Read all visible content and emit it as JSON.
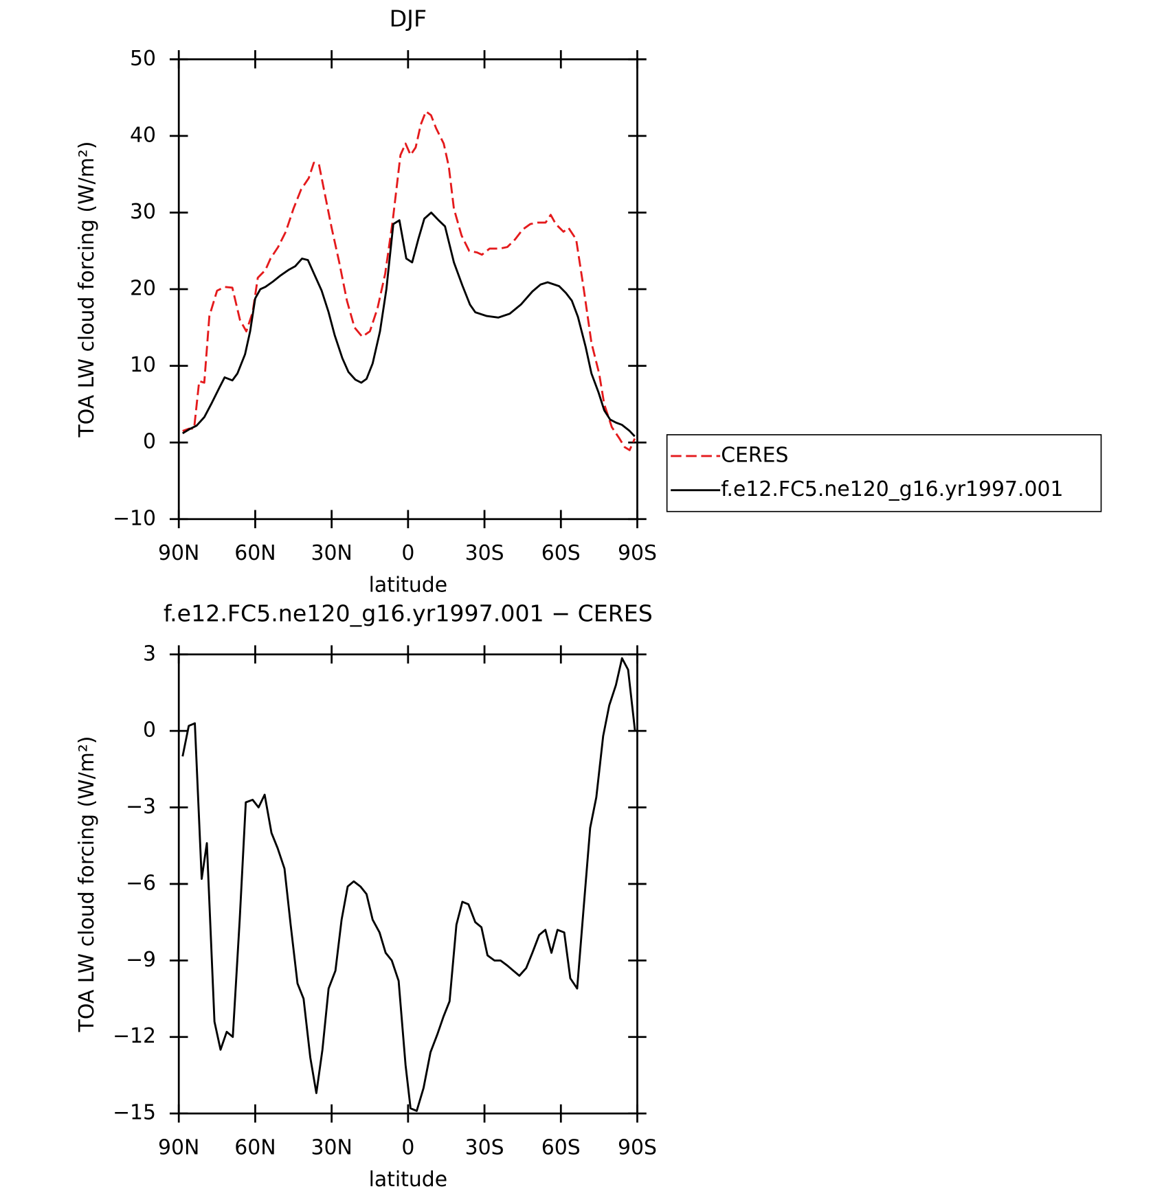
{
  "chart_data": [
    {
      "type": "line",
      "title": "DJF",
      "xlabel": "latitude",
      "ylabel": "TOA LW cloud forcing (W/m²)",
      "xlim": [
        90,
        -90
      ],
      "xticks": [
        {
          "value": 90,
          "label": "90N"
        },
        {
          "value": 60,
          "label": "60N"
        },
        {
          "value": 30,
          "label": "30N"
        },
        0,
        {
          "value": -30,
          "label": "30S"
        },
        {
          "value": -60,
          "label": "60S"
        },
        {
          "value": -90,
          "label": "90S"
        }
      ],
      "ylim": [
        -10,
        50
      ],
      "yticks": [
        {
          "value": -10,
          "label": "−10"
        },
        0,
        10,
        20,
        30,
        40,
        50
      ],
      "legend": "right",
      "series": [
        {
          "name": "CERES",
          "color": "#e41a1c",
          "style": "dashed",
          "x": [
            88.5,
            86,
            84,
            82,
            80,
            78,
            75,
            72,
            69,
            66,
            63.5,
            61,
            59,
            56,
            54,
            51,
            48,
            45,
            42,
            39,
            37,
            35,
            33,
            30,
            27,
            24,
            21,
            18,
            15,
            12,
            9,
            6,
            3,
            1,
            -1,
            -3,
            -5,
            -7,
            -9,
            -11,
            -14,
            -16,
            -18,
            -21,
            -24,
            -27,
            -29,
            -32,
            -36,
            -39,
            -42,
            -45,
            -48,
            -51,
            -54,
            -56,
            -58,
            -61,
            -63,
            -66,
            -69,
            -72,
            -75,
            -77,
            -80,
            -83,
            -85,
            -87,
            -89
          ],
          "values": [
            1.5,
            1.8,
            1.8,
            8,
            7.8,
            16.5,
            19.8,
            20.3,
            20.2,
            16,
            14.5,
            17,
            21.5,
            22.5,
            24,
            25.5,
            27.5,
            30.5,
            33,
            34.5,
            36.5,
            36.3,
            33,
            28,
            23.5,
            18.5,
            15,
            13.8,
            14.5,
            17.5,
            22,
            29,
            37.5,
            39,
            37.5,
            38.5,
            41.5,
            43.2,
            42.7,
            41,
            39,
            36,
            30.5,
            27,
            25,
            24.8,
            24.5,
            25.3,
            25.3,
            25.5,
            26.5,
            27.8,
            28.5,
            28.7,
            28.7,
            29.7,
            28.5,
            27.5,
            28,
            26.5,
            20,
            13,
            9,
            5,
            2,
            0.5,
            -0.6,
            -1,
            0.5
          ]
        },
        {
          "name": "f.e12.FC5.ne120_g16.yr1997.001",
          "color": "#000000",
          "style": "solid",
          "x": [
            88.5,
            86,
            83,
            80,
            77,
            74,
            72,
            69,
            67,
            64,
            62,
            60,
            58,
            56,
            53,
            50,
            47,
            44.3,
            41.6,
            39.3,
            36.9,
            33.9,
            31.2,
            28.8,
            25.8,
            23.4,
            20.7,
            18.4,
            16.3,
            13.9,
            11,
            8.5,
            5.8,
            3.4,
            0.7,
            -1.6,
            -4,
            -6.4,
            -9.1,
            -12,
            -14.5,
            -18,
            -21.3,
            -24.3,
            -26.4,
            -30.9,
            -35.4,
            -39.9,
            -44.3,
            -48.8,
            -52,
            -54.8,
            -59.3,
            -62,
            -64.3,
            -66.7,
            -69.7,
            -72,
            -74.8,
            -77,
            -79.3,
            -81.6,
            -84,
            -87,
            -89
          ],
          "values": [
            1.2,
            1.7,
            2.2,
            3.3,
            5.2,
            7.2,
            8.5,
            8.1,
            9,
            11.5,
            14.5,
            18.8,
            20,
            20.3,
            21,
            21.8,
            22.5,
            23,
            24,
            23.8,
            22,
            19.8,
            17,
            14,
            11,
            9.2,
            8.2,
            7.8,
            8.3,
            10.3,
            14.5,
            20,
            28.5,
            29,
            24,
            23.5,
            26.5,
            29.2,
            30,
            29,
            28.2,
            23.5,
            20.5,
            18,
            17,
            16.5,
            16.3,
            16.8,
            18,
            19.7,
            20.6,
            20.9,
            20.4,
            19.5,
            18.5,
            16.4,
            12.5,
            9,
            6.5,
            4.2,
            3,
            2.6,
            2.3,
            1.5,
            0.8
          ]
        }
      ]
    },
    {
      "type": "line",
      "title": "f.e12.FC5.ne120_g16.yr1997.001 − CERES",
      "xlabel": "latitude",
      "ylabel": "TOA LW cloud forcing (W/m²)",
      "xlim": [
        90,
        -90
      ],
      "xticks": [
        {
          "value": 90,
          "label": "90N"
        },
        {
          "value": 60,
          "label": "60N"
        },
        {
          "value": 30,
          "label": "30N"
        },
        0,
        {
          "value": -30,
          "label": "30S"
        },
        {
          "value": -60,
          "label": "60S"
        },
        {
          "value": -90,
          "label": "90S"
        }
      ],
      "ylim": [
        -15,
        3
      ],
      "yticks": [
        {
          "value": -15,
          "label": "−15"
        },
        {
          "value": -12,
          "label": "−12"
        },
        {
          "value": -9,
          "label": "−9"
        },
        {
          "value": -6,
          "label": "−6"
        },
        {
          "value": -3,
          "label": "−3"
        },
        0,
        3
      ],
      "series": [
        {
          "color": "#000000",
          "style": "solid",
          "x": [
            88.5,
            86.1,
            83.7,
            81,
            79,
            76,
            73.6,
            71.2,
            68.8,
            66.1,
            63.7,
            61,
            58.7,
            56.3,
            53.6,
            51.2,
            48.5,
            46.1,
            43.4,
            41,
            38.4,
            36,
            33.6,
            31.2,
            28.5,
            26.1,
            23.7,
            21.3,
            18.7,
            16.3,
            13.9,
            11.2,
            8.8,
            6.4,
            3.7,
            1,
            -1,
            -3.4,
            -6.1,
            -8.8,
            -11.5,
            -13.9,
            -16.3,
            -19,
            -21.3,
            -23.7,
            -26.4,
            -28.8,
            -31.2,
            -33.9,
            -36.3,
            -39,
            -41.3,
            -43.7,
            -46.4,
            -48.8,
            -51.5,
            -53.9,
            -56.3,
            -58.7,
            -61.3,
            -63.7,
            -66.4,
            -68.8,
            -71.5,
            -73.9,
            -76.6,
            -79,
            -81.6,
            -84,
            -86.4,
            -89.1
          ],
          "values": [
            -1.0,
            0.2,
            0.3,
            -5.8,
            -4.4,
            -11.4,
            -12.5,
            -11.8,
            -12.0,
            -7.4,
            -2.8,
            -2.7,
            -3.0,
            -2.5,
            -4.0,
            -4.6,
            -5.4,
            -7.6,
            -9.9,
            -10.5,
            -12.8,
            -14.2,
            -12.5,
            -10.1,
            -9.4,
            -7.4,
            -6.1,
            -5.9,
            -6.1,
            -6.4,
            -7.4,
            -7.9,
            -8.7,
            -9.0,
            -9.8,
            -13.1,
            -14.8,
            -14.9,
            -14.0,
            -12.6,
            -11.9,
            -11.2,
            -10.6,
            -7.6,
            -6.7,
            -6.8,
            -7.5,
            -7.7,
            -8.8,
            -9.0,
            -9.0,
            -9.2,
            -9.4,
            -9.6,
            -9.3,
            -8.7,
            -8.0,
            -7.8,
            -8.7,
            -7.8,
            -7.9,
            -9.7,
            -10.1,
            -7.1,
            -3.8,
            -2.6,
            -0.2,
            1.0,
            1.8,
            2.85,
            2.4,
            0
          ]
        }
      ]
    }
  ]
}
